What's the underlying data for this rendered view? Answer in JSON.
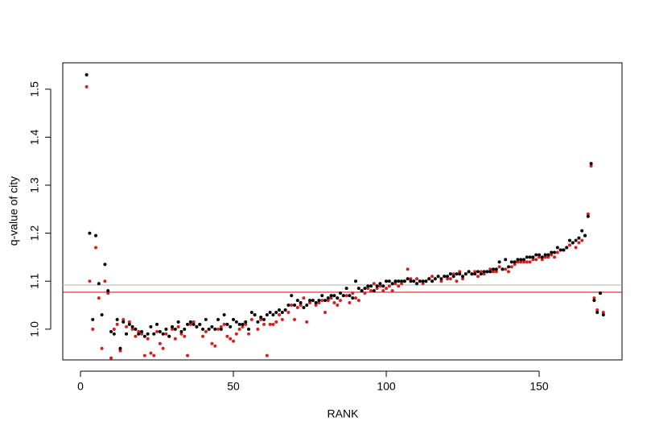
{
  "chart_data": {
    "type": "scatter",
    "xlabel": "RANK",
    "ylabel": "q-value of city",
    "xlim": [
      -5.8,
      177.1
    ],
    "ylim": [
      0.936,
      1.555
    ],
    "xticks": [
      0,
      50,
      100,
      150
    ],
    "yticks": [
      {
        "value": 1,
        "label": "1.0"
      },
      1.1,
      1.2,
      1.3,
      1.4,
      1.5
    ],
    "hlines": [
      {
        "value": 1.092,
        "color": "#bebebe"
      },
      {
        "value": 1.077,
        "color": "#d62020"
      }
    ],
    "x": [
      2,
      3,
      4,
      5,
      6,
      7,
      8,
      9,
      10,
      11,
      12,
      13,
      14,
      15,
      16,
      17,
      18,
      19,
      20,
      21,
      22,
      23,
      24,
      25,
      26,
      27,
      28,
      29,
      30,
      31,
      32,
      33,
      34,
      35,
      36,
      37,
      38,
      39,
      40,
      41,
      42,
      43,
      44,
      45,
      46,
      47,
      48,
      49,
      50,
      51,
      52,
      53,
      54,
      55,
      56,
      57,
      58,
      59,
      60,
      61,
      62,
      63,
      64,
      65,
      66,
      67,
      68,
      69,
      70,
      71,
      72,
      73,
      74,
      75,
      76,
      77,
      78,
      79,
      80,
      81,
      82,
      83,
      84,
      85,
      86,
      87,
      88,
      89,
      90,
      91,
      92,
      93,
      94,
      95,
      96,
      97,
      98,
      99,
      100,
      101,
      102,
      103,
      104,
      105,
      106,
      107,
      108,
      109,
      110,
      111,
      112,
      113,
      114,
      115,
      116,
      117,
      118,
      119,
      120,
      121,
      122,
      123,
      124,
      125,
      126,
      127,
      128,
      129,
      130,
      131,
      132,
      133,
      134,
      135,
      136,
      137,
      138,
      139,
      140,
      141,
      142,
      143,
      144,
      145,
      146,
      147,
      148,
      149,
      150,
      151,
      152,
      153,
      154,
      155,
      156,
      157,
      158,
      159,
      160,
      161,
      162,
      163,
      164,
      165,
      166,
      167,
      168,
      169,
      170,
      171
    ],
    "series": [
      {
        "color": "#d62020",
        "values": [
          1.505,
          1.1,
          1.0,
          1.17,
          1.065,
          0.96,
          1.1,
          1.075,
          0.94,
          1.0,
          1.01,
          0.955,
          1.02,
          1.005,
          1.015,
          1.0,
          0.985,
          0.995,
          0.99,
          0.945,
          0.98,
          0.95,
          0.945,
          0.995,
          0.97,
          0.96,
          0.99,
          0.985,
          1.0,
          0.98,
          1.005,
          0.99,
          0.985,
          0.945,
          1.01,
          1.015,
          1.005,
          1.01,
          0.985,
          0.995,
          1.0,
          0.97,
          0.965,
          1.0,
          1.005,
          1.01,
          0.985,
          0.98,
          0.975,
          0.99,
          1.0,
          1.005,
          1.01,
          0.99,
          1.02,
          1.03,
          1.0,
          1.02,
          1.01,
          0.945,
          1.01,
          1.01,
          1.015,
          1.03,
          1.02,
          1.04,
          1.035,
          1.05,
          1.02,
          1.045,
          1.05,
          1.065,
          1.015,
          1.055,
          1.06,
          1.05,
          1.055,
          1.06,
          1.035,
          1.06,
          1.065,
          1.055,
          1.05,
          1.06,
          1.07,
          1.07,
          1.055,
          1.075,
          1.065,
          1.06,
          1.08,
          1.075,
          1.085,
          1.08,
          1.095,
          1.085,
          1.09,
          1.08,
          1.085,
          1.09,
          1.08,
          1.095,
          1.09,
          1.095,
          1.1,
          1.125,
          1.105,
          1.1,
          1.105,
          1.1,
          1.095,
          1.1,
          1.105,
          1.11,
          1.105,
          1.11,
          1.1,
          1.11,
          1.105,
          1.105,
          1.115,
          1.1,
          1.12,
          1.105,
          1.115,
          1.12,
          1.115,
          1.12,
          1.11,
          1.12,
          1.115,
          1.12,
          1.125,
          1.12,
          1.12,
          1.13,
          1.125,
          1.125,
          1.12,
          1.13,
          1.135,
          1.14,
          1.14,
          1.14,
          1.14,
          1.14,
          1.145,
          1.145,
          1.15,
          1.145,
          1.15,
          1.15,
          1.155,
          1.15,
          1.16,
          1.165,
          1.165,
          1.17,
          1.175,
          1.18,
          1.17,
          1.18,
          1.185,
          1.195,
          1.24,
          1.34,
          1.065,
          1.04,
          1.075,
          1.035
        ]
      },
      {
        "color": "#000000",
        "values": [
          1.53,
          1.2,
          1.02,
          1.195,
          1.095,
          1.03,
          1.135,
          1.08,
          0.995,
          0.99,
          1.02,
          0.96,
          1.015,
          0.99,
          1.01,
          1.005,
          1.0,
          0.99,
          0.995,
          0.985,
          0.99,
          1.005,
          0.99,
          1.01,
          0.995,
          0.99,
          1.0,
          0.985,
          1.005,
          1.0,
          1.015,
          0.995,
          1.0,
          1.01,
          1.015,
          1.01,
          1.005,
          1.01,
          1.0,
          1.02,
          1.0,
          1.005,
          1.0,
          1.02,
          1.0,
          1.03,
          1.01,
          1.005,
          1.02,
          1.015,
          1.01,
          1.01,
          1.015,
          1.0,
          1.035,
          1.03,
          1.015,
          1.025,
          1.02,
          1.03,
          1.035,
          1.03,
          1.035,
          1.04,
          1.035,
          1.04,
          1.05,
          1.07,
          1.05,
          1.06,
          1.055,
          1.045,
          1.05,
          1.06,
          1.06,
          1.055,
          1.06,
          1.07,
          1.06,
          1.065,
          1.07,
          1.07,
          1.065,
          1.075,
          1.07,
          1.085,
          1.07,
          1.065,
          1.1,
          1.085,
          1.08,
          1.085,
          1.09,
          1.09,
          1.08,
          1.09,
          1.095,
          1.09,
          1.1,
          1.1,
          1.095,
          1.1,
          1.1,
          1.1,
          1.1,
          1.105,
          1.1,
          1.1,
          1.095,
          1.1,
          1.1,
          1.1,
          1.105,
          1.1,
          1.105,
          1.11,
          1.105,
          1.11,
          1.11,
          1.115,
          1.11,
          1.115,
          1.115,
          1.11,
          1.115,
          1.12,
          1.115,
          1.115,
          1.12,
          1.115,
          1.12,
          1.12,
          1.12,
          1.125,
          1.125,
          1.14,
          1.125,
          1.145,
          1.13,
          1.14,
          1.14,
          1.145,
          1.145,
          1.145,
          1.15,
          1.15,
          1.15,
          1.155,
          1.155,
          1.15,
          1.155,
          1.155,
          1.16,
          1.16,
          1.17,
          1.165,
          1.165,
          1.17,
          1.185,
          1.18,
          1.185,
          1.19,
          1.205,
          1.195,
          1.235,
          1.345,
          1.06,
          1.035,
          1.075,
          1.03
        ]
      }
    ]
  }
}
